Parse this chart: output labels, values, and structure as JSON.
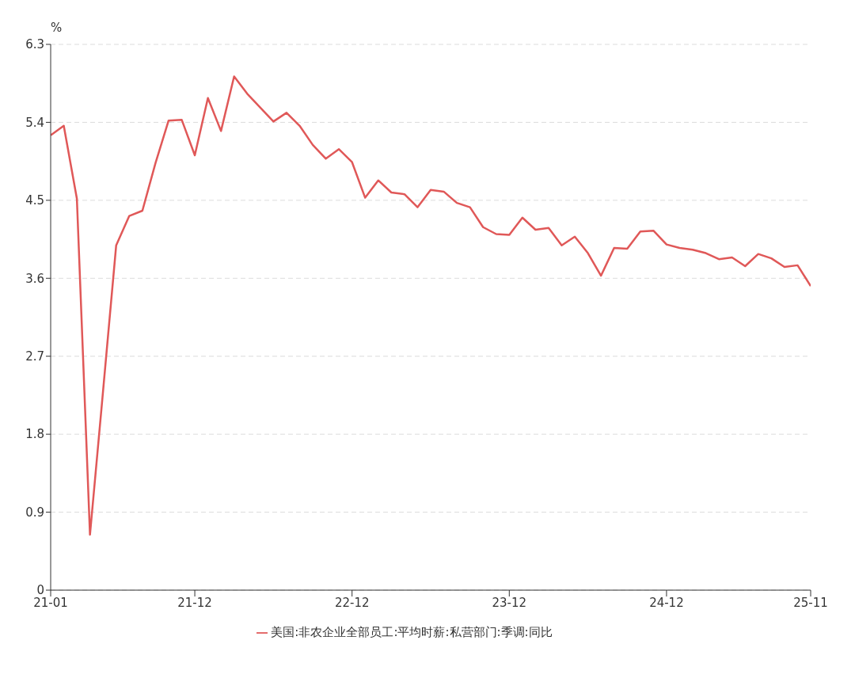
{
  "chart_data": {
    "type": "line",
    "ylabel": "%",
    "categories": [
      "21-01",
      null,
      null,
      null,
      null,
      null,
      null,
      null,
      null,
      null,
      null,
      "21-12",
      null,
      null,
      null,
      null,
      null,
      null,
      null,
      null,
      null,
      null,
      null,
      "22-12",
      null,
      null,
      null,
      null,
      null,
      null,
      null,
      null,
      null,
      null,
      null,
      "23-12",
      null,
      null,
      null,
      null,
      null,
      null,
      null,
      null,
      null,
      null,
      null,
      "24-12",
      null,
      null,
      null,
      null,
      null,
      null,
      null,
      null,
      null,
      null,
      "25-11"
    ],
    "series": [
      {
        "name": "美国:非农企业全部员工:平均时薪:私营部门:季调:同比",
        "color": "#e05858",
        "values": [
          5.25,
          5.36,
          4.52,
          0.64,
          2.3,
          3.98,
          4.32,
          4.38,
          4.93,
          5.42,
          5.43,
          5.02,
          5.68,
          5.3,
          5.93,
          5.73,
          5.57,
          5.41,
          5.51,
          5.36,
          5.14,
          4.98,
          5.09,
          4.94,
          4.53,
          4.73,
          4.59,
          4.57,
          4.42,
          4.62,
          4.6,
          4.47,
          4.42,
          4.19,
          4.11,
          4.1,
          4.3,
          4.16,
          4.18,
          3.98,
          4.08,
          3.89,
          3.63,
          3.95,
          3.94,
          4.14,
          4.15,
          3.99,
          3.95,
          3.93,
          3.89,
          3.82,
          3.84,
          3.74,
          3.88,
          3.83,
          3.73,
          3.75,
          3.51
        ]
      }
    ],
    "ylim": [
      0,
      6.3
    ],
    "yticks": [
      0,
      0.9,
      1.8,
      2.7,
      3.6,
      4.5,
      5.4,
      6.3
    ],
    "grid": "y",
    "legend": "bottom",
    "marker": "none",
    "line_style": "solid"
  }
}
